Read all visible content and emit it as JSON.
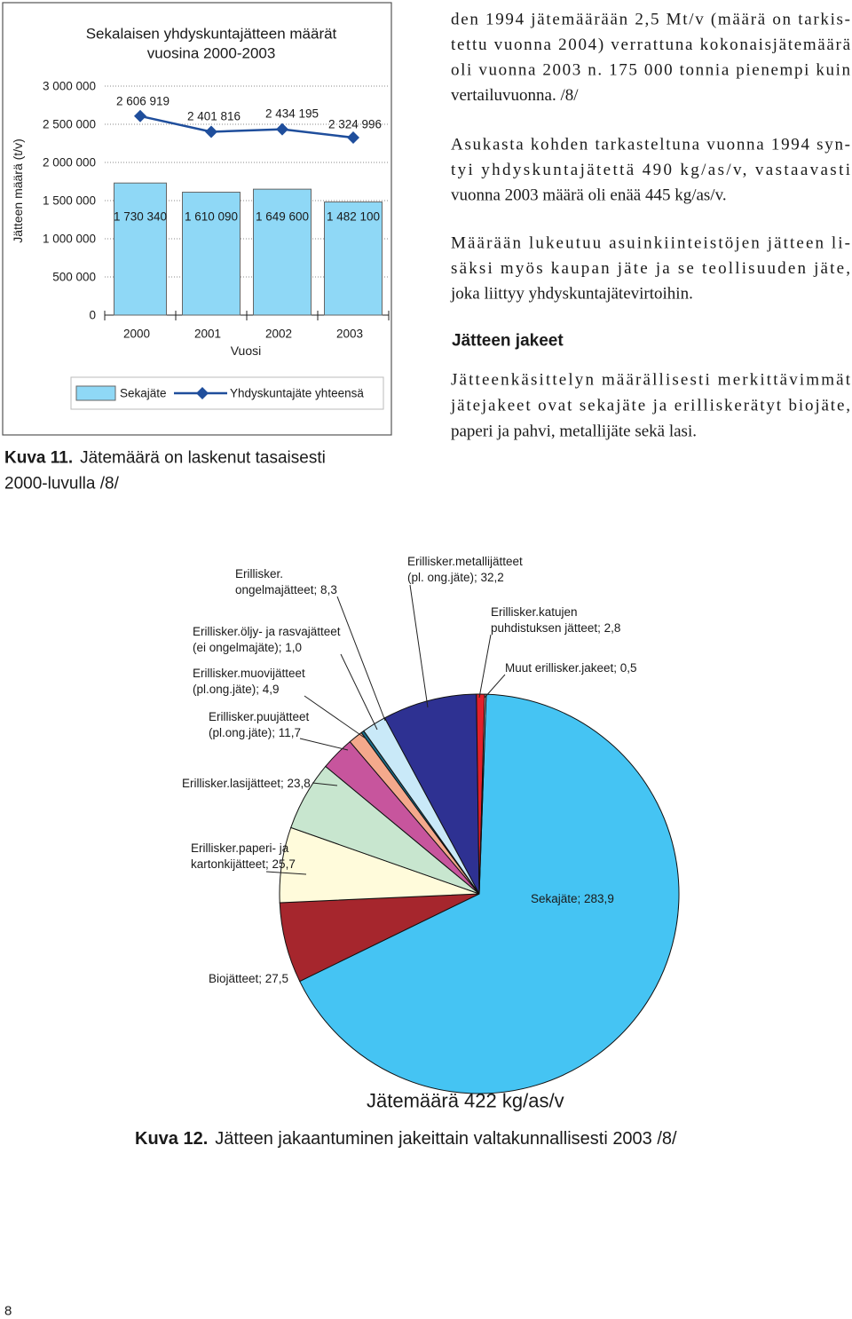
{
  "document": {
    "paragraphs": [
      [
        "den 1994 jätemäärään 2,5 Mt/v (määrä on tarkis-",
        "tettu vuonna 2004) verrattuna kokonaisjätemäärä",
        "oli vuonna 2003 n. 175 000 tonnia pienempi kuin",
        "vertailuvuonna. /8/"
      ],
      [
        "Asukasta kohden tarkasteltuna vuonna 1994 syn-",
        "tyi yhdyskuntajätettä 490 kg/as/v, vastaavasti",
        "vuonna 2003 määrä oli enää 445 kg/as/v."
      ],
      [
        "Määrään lukeutuu asuinkiinteistöjen jätteen li-",
        "säksi myös kaupan jäte ja se teollisuuden jäte,",
        "joka liittyy yhdyskuntajätevirtoihin."
      ]
    ],
    "heading": "Jätteen jakeet",
    "paragraph_after": [
      "Jätteenkäsittelyn määrällisesti merkittävimmät",
      "jätejakeet ovat sekajäte ja erilliskerätyt biojäte,",
      "paperi ja pahvi, metallijäte sekä lasi."
    ],
    "figure_captions": [
      {
        "label": "Kuva 11.",
        "text": [
          "Jätemäärä on laskenut tasaisesti",
          "2000-luvulla /8/"
        ]
      },
      {
        "label": "Kuva 12.",
        "text": [
          "Jätteen jakaantuminen jakeittain valtakunnallisesti 2003 /8/"
        ]
      }
    ],
    "page_number": "8"
  },
  "chart_data": [
    {
      "type": "bar_line",
      "title": "Sekalaisen yhdyskuntajätteen määrät",
      "subtitle": "vuosina 2000-2003",
      "ylabel": "Jätteen määrä (t/v)",
      "xlabel": "Vuosi",
      "categories": [
        "2000",
        "2001",
        "2002",
        "2003"
      ],
      "series": [
        {
          "name": "Sekajäte",
          "type": "bar",
          "color": "#8fd8f6",
          "values": [
            1730340,
            1610090,
            1649600,
            1482100
          ],
          "value_labels": [
            "1 730 340",
            "1 610 090",
            "1 649 600",
            "1 482 100"
          ]
        },
        {
          "name": "Yhdyskuntajäte yhteensä",
          "type": "line",
          "color": "#1f4e9c",
          "values": [
            2606919,
            2401816,
            2434195,
            2324996
          ],
          "value_labels": [
            "2 606 919",
            "2 401 816",
            "2 434 195",
            "2 324 996"
          ]
        }
      ],
      "ylim": [
        0,
        3000000
      ],
      "yticks": [
        0,
        {
          "value": 500000,
          "label": "500 000"
        },
        {
          "value": 1000000,
          "label": "1 000 000"
        },
        {
          "value": 1500000,
          "label": "1 500 000"
        },
        {
          "value": 2000000,
          "label": "2 000 000"
        },
        {
          "value": 2500000,
          "label": "2 500 000"
        },
        {
          "value": 3000000,
          "label": "3 000 000"
        }
      ],
      "grid": true
    },
    {
      "type": "pie",
      "annotation": "Jätemäärä  422 kg/as/v",
      "values": [
        283.9,
        27.5,
        25.7,
        23.8,
        11.7,
        4.9,
        1.0,
        8.3,
        32.2,
        2.8,
        0.5
      ],
      "value_labels": [
        "Sekajäte; 283,9",
        "Biojätteet; 27,5",
        "Erillisker.paperi- ja\nkartonkijätteet; 25,7",
        "Erillisker.lasijätteet; 23,8",
        "Erillisker.puujätteet\n(pl.ong.jäte); 11,7",
        "Erillisker.muovijätteet\n(pl.ong.jäte); 4,9",
        "Erillisker.öljy- ja rasvajätteet\n(ei ongelmajäte); 1,0",
        "Erillisker.\nongelmajätteet; 8,3",
        "Erillisker.metallijätteet\n(pl. ong.jäte); 32,2",
        "Erillisker.katujen\npuhdistuksen jätteet; 2,8",
        "Muut erillisker.jakeet; 0,5"
      ],
      "colors": [
        "#45c4f3",
        "#a6262d",
        "#fffbdb",
        "#c8e6cf",
        "#c7559d",
        "#f4a98c",
        "#1a6c88",
        "#c9e9f8",
        "#2e3192",
        "#e2202a",
        "#ffffff"
      ]
    }
  ]
}
